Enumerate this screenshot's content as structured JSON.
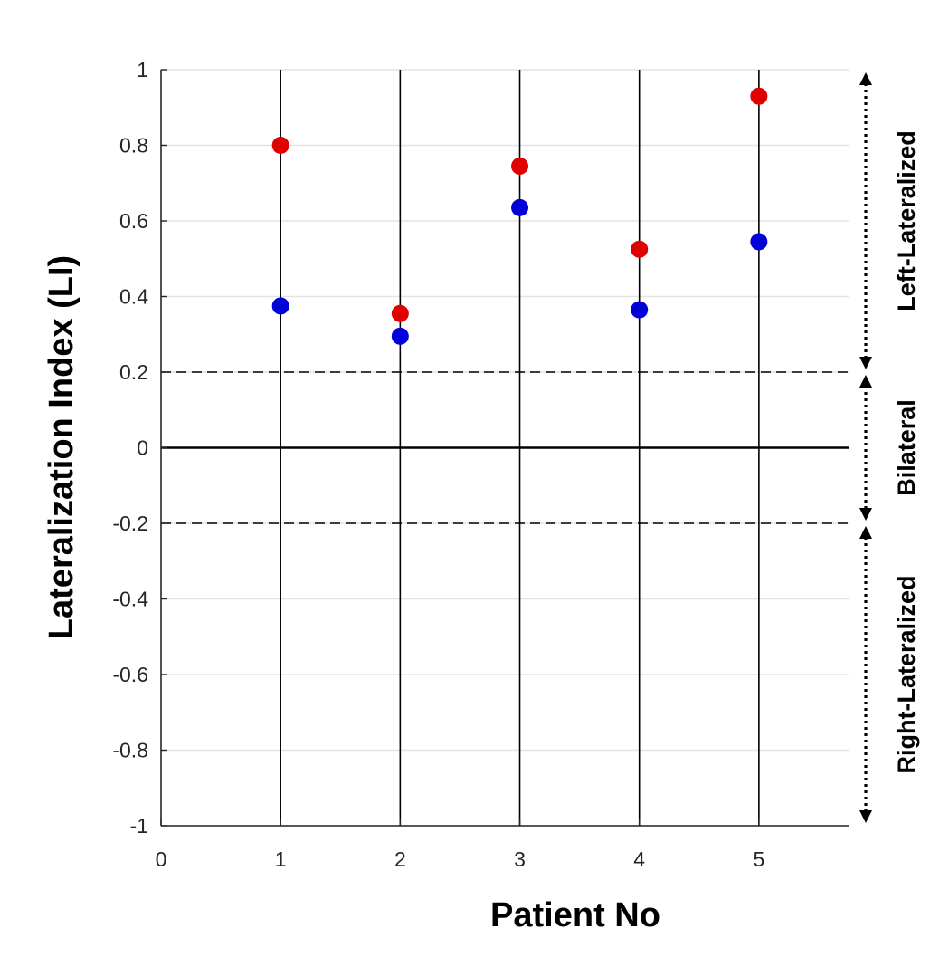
{
  "chart_data": {
    "type": "scatter",
    "title": "",
    "xlabel": "Patient No",
    "ylabel": "Lateralization Index (LI)",
    "xlim": [
      0,
      5.75
    ],
    "ylim": [
      -1,
      1
    ],
    "x_ticks": [
      0,
      1,
      2,
      3,
      4,
      5
    ],
    "y_ticks": [
      -1,
      -0.8,
      -0.6,
      -0.4,
      -0.2,
      0,
      0.2,
      0.4,
      0.6,
      0.8,
      1
    ],
    "y_tick_labels": [
      "-1",
      "-0.8",
      "-0.6",
      "-0.4",
      "-0.2",
      "0",
      "0.2",
      "0.4",
      "0.6",
      "0.8",
      "1"
    ],
    "grid": true,
    "vertical_lines": [
      1,
      2,
      3,
      4,
      5
    ],
    "threshold_lines": [
      0.2,
      -0.2
    ],
    "zero_line": 0,
    "series": [
      {
        "name": "red",
        "color": "#e00000",
        "x": [
          1,
          2,
          3,
          4,
          5
        ],
        "values": [
          0.8,
          0.355,
          0.745,
          0.525,
          0.93
        ]
      },
      {
        "name": "blue",
        "color": "#0000d8",
        "x": [
          1,
          2,
          3,
          4,
          5
        ],
        "values": [
          0.375,
          0.295,
          0.635,
          0.365,
          0.545
        ]
      }
    ],
    "regions": [
      {
        "label": "Left-Lateralized",
        "from": 0.2,
        "to": 1
      },
      {
        "label": "Bilateral",
        "from": -0.2,
        "to": 0.2
      },
      {
        "label": "Right-Lateralized",
        "from": -1,
        "to": -0.2
      }
    ]
  }
}
